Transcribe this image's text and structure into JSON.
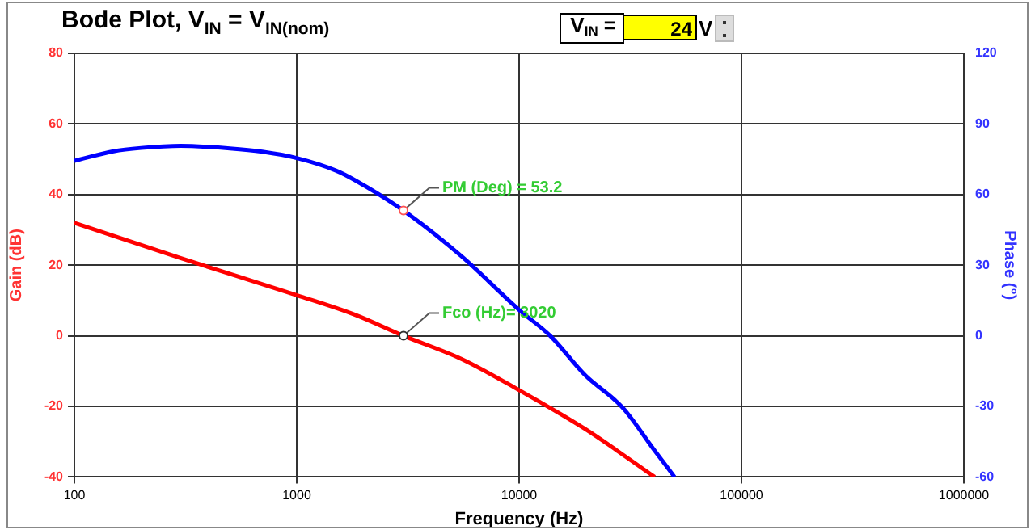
{
  "chart_data": {
    "type": "line",
    "title": "Bode Plot, V$_{IN}$ = V$_{IN(nom)}$",
    "xlabel": "Frequency (Hz)",
    "ylabel": "Gain (dB)",
    "y2label": "Phase (°)",
    "log": "x",
    "xlim": [
      100,
      1000000
    ],
    "xticks": [
      100,
      1000,
      10000,
      100000,
      1000000
    ],
    "ylim": [
      -40,
      80
    ],
    "yticks": [
      -40,
      -20,
      0,
      20,
      40,
      60,
      80
    ],
    "y2lim": [
      -60,
      120
    ],
    "y2ticks": [
      -60,
      -30,
      0,
      30,
      60,
      90,
      120
    ],
    "grid": true,
    "legend": false,
    "marker": "none",
    "line_style": "solid",
    "series": [
      {
        "name": null,
        "color": "#ff0000",
        "x": [
          100,
          300,
          1000,
          1820,
          3020,
          5520,
          10000,
          19800,
          40700
        ],
        "values": [
          32,
          22,
          11.5,
          6,
          0,
          -6.6,
          -15.4,
          -26.4,
          -40
        ]
      },
      {
        "name": null,
        "color": "#0000ff",
        "axis": "y2",
        "x": [
          100,
          150,
          200,
          300,
          500,
          700,
          1000,
          1500,
          1820,
          3020,
          5520,
          10000,
          13800,
          19800,
          29200,
          40700,
          50000
        ],
        "values": [
          74.3,
          78.4,
          79.8,
          80.7,
          79.6,
          78.2,
          75.5,
          70.2,
          66.2,
          53.2,
          33.7,
          11,
          0,
          -16.7,
          -30.5,
          -48.8,
          -60
        ]
      }
    ],
    "annotations": [
      {
        "text": "PM (Deg) = 53.2",
        "x": 3020,
        "y": 35.5
      },
      {
        "text": "Fco (Hz)= 3020",
        "x": 3020,
        "y": 0
      },
      "V$_{IN}$ =",
      "24",
      "V"
    ]
  }
}
